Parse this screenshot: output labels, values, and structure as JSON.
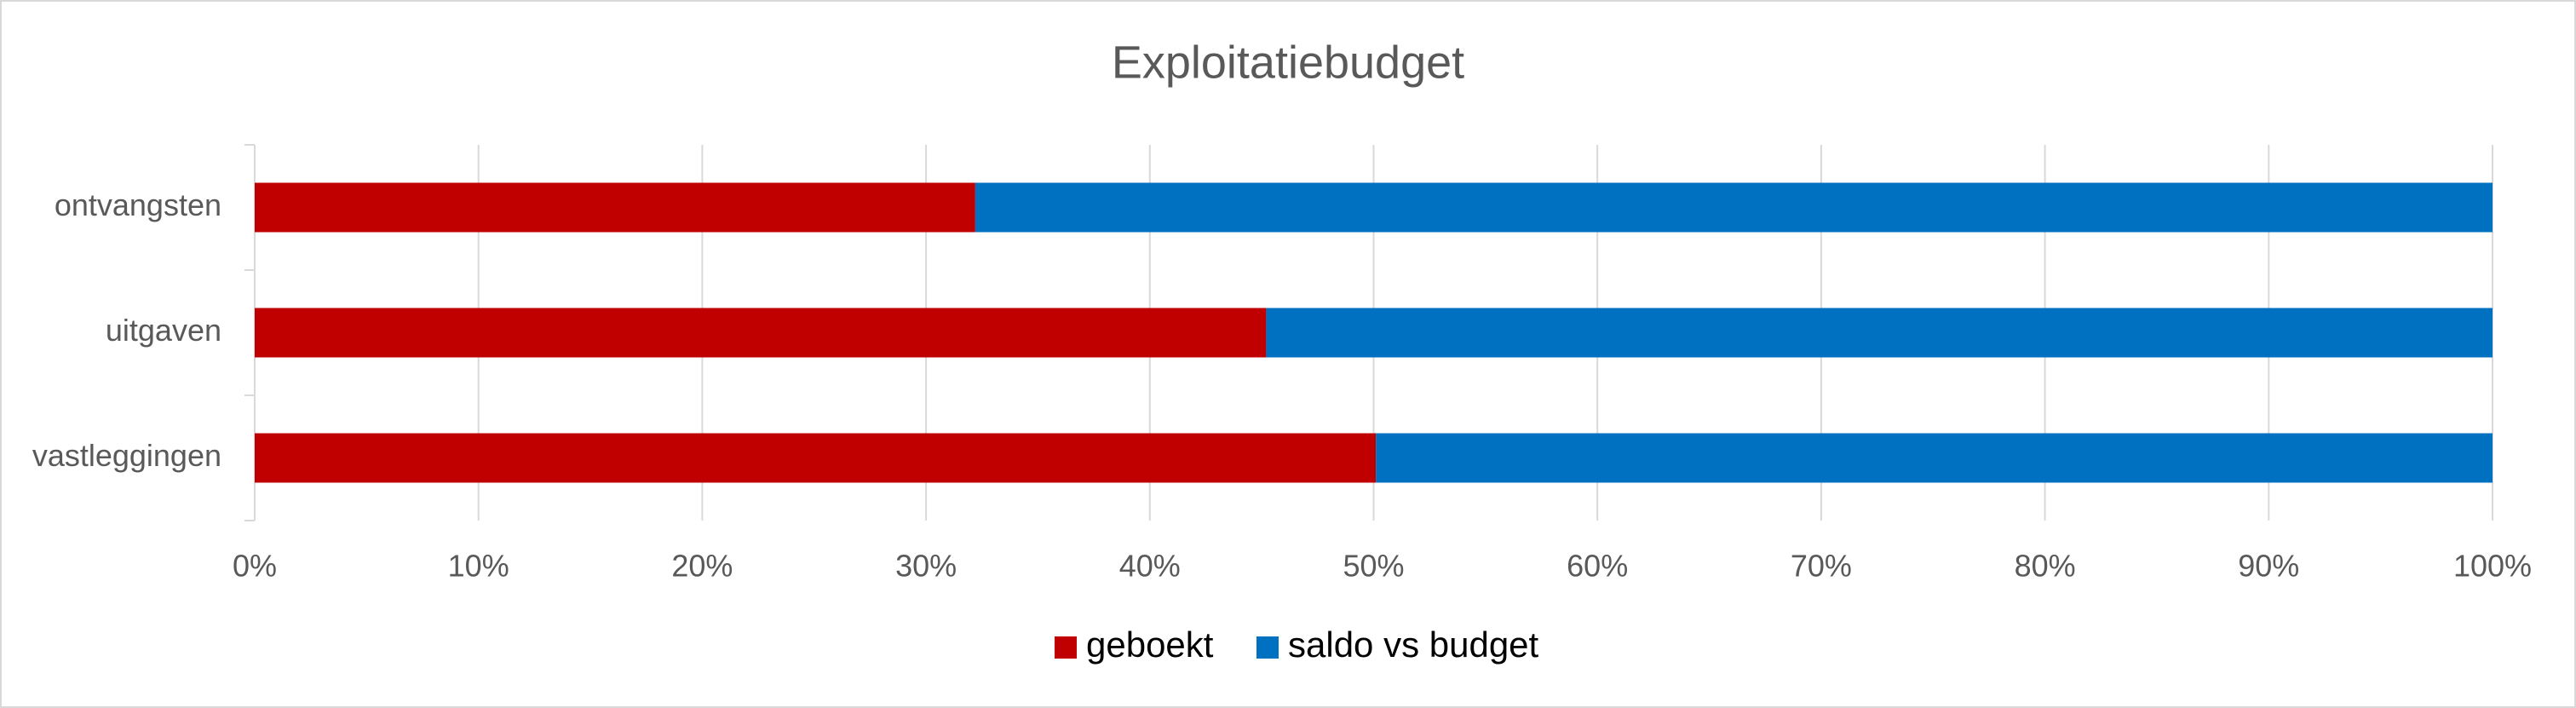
{
  "chart_data": {
    "type": "stacked-bar-horizontal",
    "title": "Exploitatiebudget",
    "categories": [
      "ontvangsten",
      "uitgaven",
      "vastleggingen"
    ],
    "series": [
      {
        "name": "geboekt",
        "color": "#c00000",
        "values": [
          32.2,
          45.2,
          50.1
        ]
      },
      {
        "name": "saldo vs budget",
        "color": "#0070c0",
        "values": [
          67.8,
          54.8,
          49.9
        ]
      }
    ],
    "xlim": [
      0,
      100
    ],
    "xticks": [
      {
        "value": 0,
        "label": "0%"
      },
      {
        "value": 10,
        "label": "10%"
      },
      {
        "value": 20,
        "label": "20%"
      },
      {
        "value": 30,
        "label": "30%"
      },
      {
        "value": 40,
        "label": "40%"
      },
      {
        "value": 50,
        "label": "50%"
      },
      {
        "value": 60,
        "label": "60%"
      },
      {
        "value": 70,
        "label": "70%"
      },
      {
        "value": 80,
        "label": "80%"
      },
      {
        "value": 90,
        "label": "90%"
      },
      {
        "value": 100,
        "label": "100%"
      }
    ],
    "grid": true,
    "legend": "bottom"
  }
}
